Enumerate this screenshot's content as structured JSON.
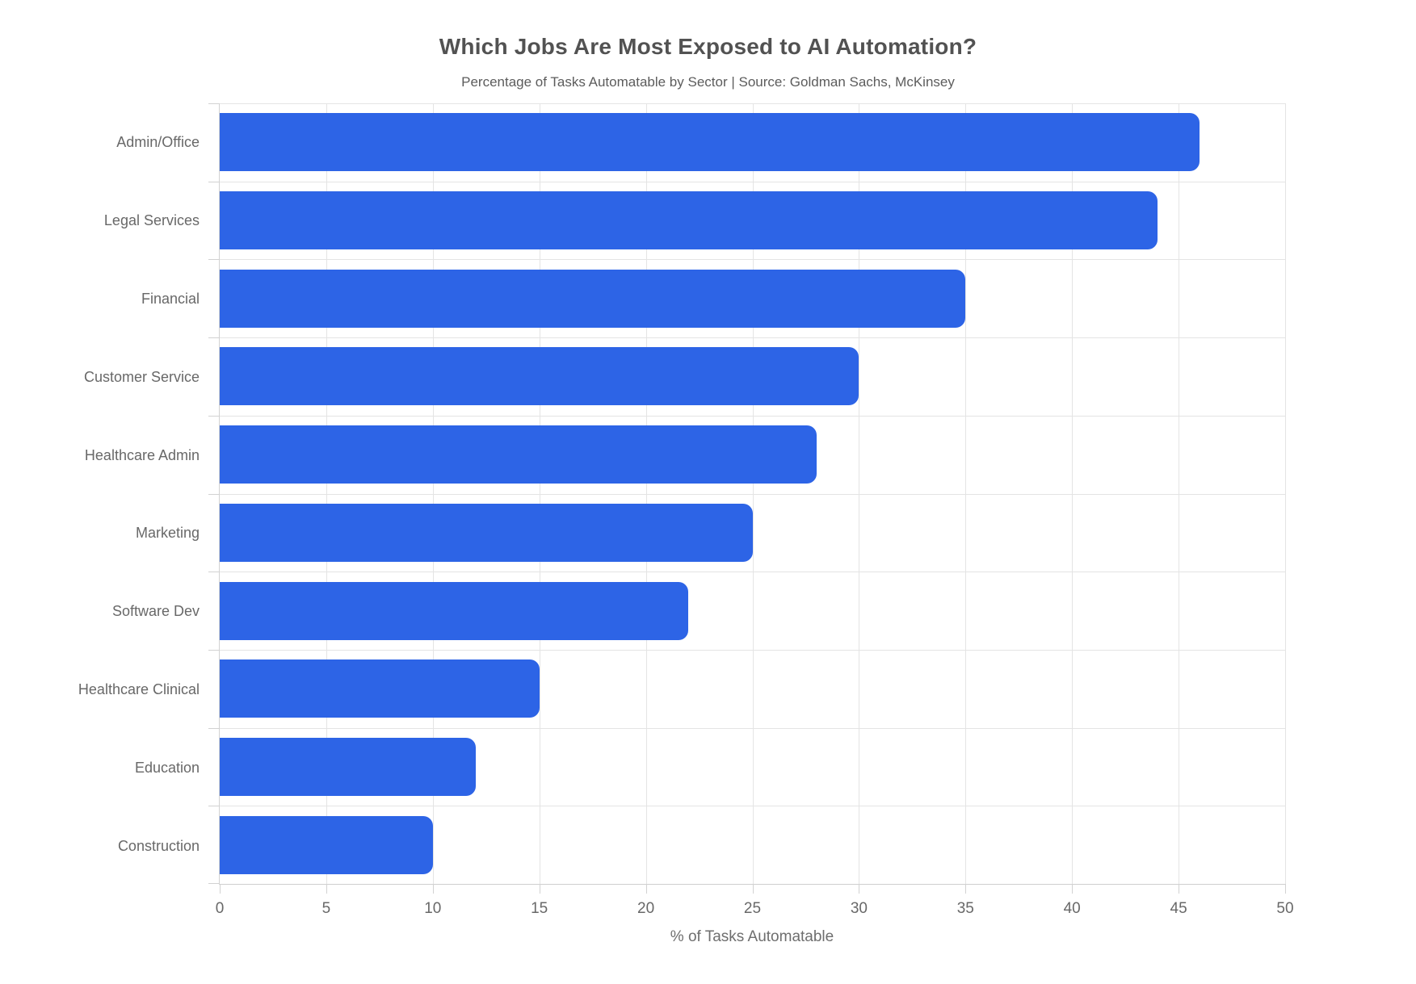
{
  "chart_data": {
    "type": "bar",
    "orientation": "horizontal",
    "title": "Which Jobs Are Most Exposed to AI Automation?",
    "subtitle": "Percentage of Tasks Automatable by Sector | Source: Goldman Sachs, McKinsey",
    "categories": [
      "Admin/Office",
      "Legal Services",
      "Financial",
      "Customer Service",
      "Healthcare Admin",
      "Marketing",
      "Software Dev",
      "Healthcare Clinical",
      "Education",
      "Construction"
    ],
    "values": [
      46,
      44,
      35,
      30,
      28,
      25,
      22,
      15,
      12,
      10
    ],
    "xlabel": "% of Tasks Automatable",
    "xlim": [
      0,
      50
    ],
    "xticks": [
      0,
      5,
      10,
      15,
      20,
      25,
      30,
      35,
      40,
      45,
      50
    ],
    "grid": true,
    "legend": false,
    "colors": {
      "bar": "#2d64e6",
      "grid": "#e4e4e4",
      "axis": "#d2d2d2",
      "title_text": "#525252",
      "label_text": "#686868"
    }
  }
}
